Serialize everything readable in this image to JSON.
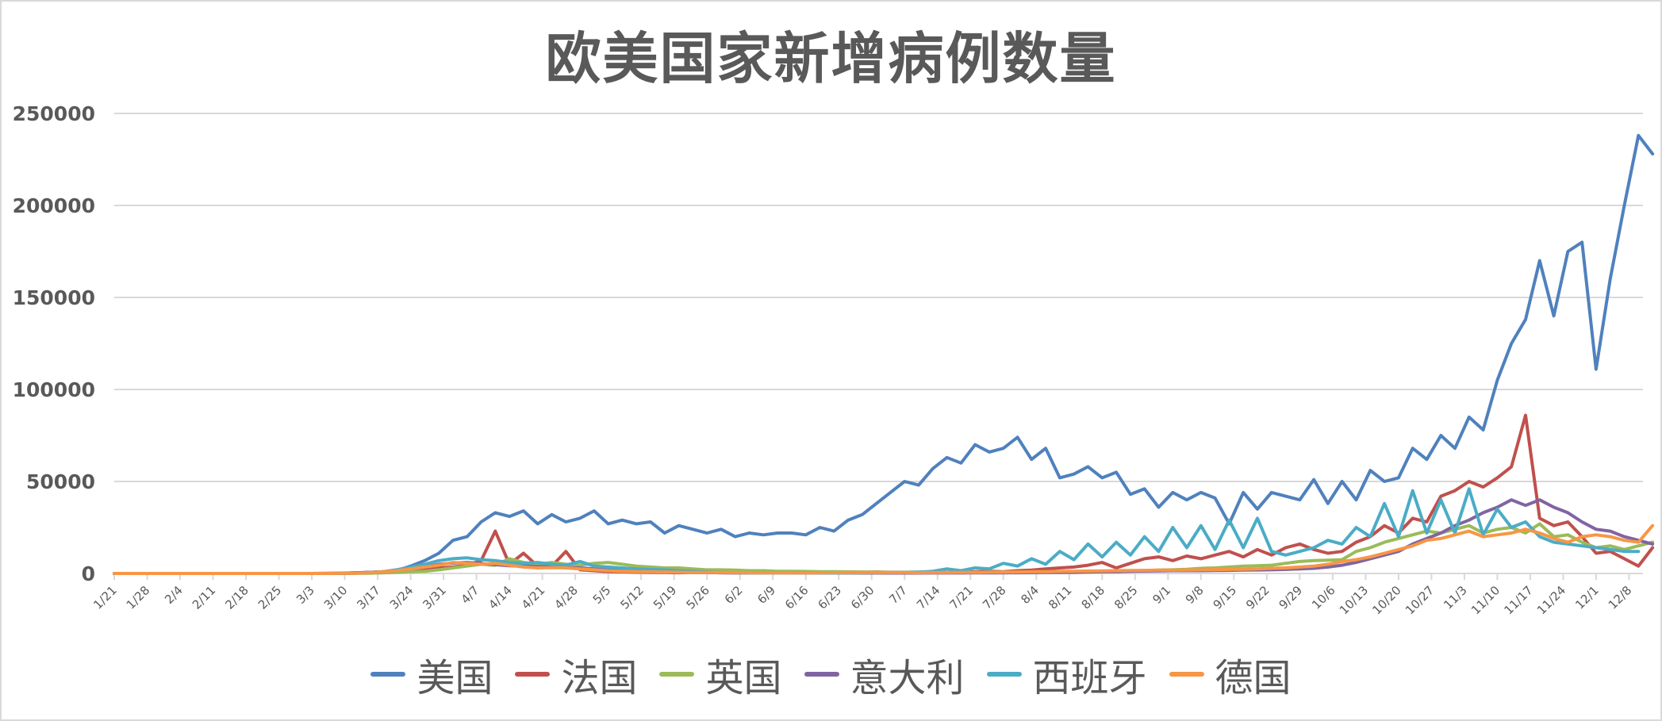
{
  "chart_data": {
    "type": "line",
    "title": "欧美国家新增病例数量",
    "xlabel": "",
    "ylabel": "",
    "ylim": [
      0,
      250000
    ],
    "yticks": [
      0,
      50000,
      100000,
      150000,
      200000,
      250000
    ],
    "grid": true,
    "legend_position": "bottom",
    "x_tick_labels": [
      "1/21",
      "1/28",
      "2/4",
      "2/11",
      "2/18",
      "2/25",
      "3/3",
      "3/10",
      "3/17",
      "3/24",
      "3/31",
      "4/7",
      "4/14",
      "4/21",
      "4/28",
      "5/5",
      "5/12",
      "5/19",
      "5/26",
      "6/2",
      "6/9",
      "6/16",
      "6/23",
      "6/30",
      "7/7",
      "7/14",
      "7/21",
      "7/28",
      "8/4",
      "8/11",
      "8/18",
      "8/25",
      "9/1",
      "9/8",
      "9/15",
      "9/22",
      "9/29",
      "10/6",
      "10/13",
      "10/20",
      "10/27",
      "11/3",
      "11/10",
      "11/17",
      "11/24",
      "12/1",
      "12/8"
    ],
    "x_start": "1/21",
    "x_step_days": 3,
    "series": [
      {
        "name": "美国",
        "color": "#4f81bd",
        "values": [
          1,
          0,
          0,
          0,
          0,
          0,
          0,
          0,
          0,
          0,
          0,
          0,
          0,
          0,
          20,
          50,
          100,
          300,
          500,
          900,
          1500,
          4000,
          7000,
          11000,
          18000,
          20000,
          28000,
          33000,
          31000,
          34000,
          27000,
          32000,
          28000,
          30000,
          34000,
          27000,
          29000,
          27000,
          28000,
          22000,
          26000,
          24000,
          22000,
          24000,
          20000,
          22000,
          21000,
          22000,
          22000,
          21000,
          25000,
          23000,
          29000,
          32000,
          38000,
          44000,
          50000,
          48000,
          57000,
          63000,
          60000,
          70000,
          66000,
          68000,
          74000,
          62000,
          68000,
          52000,
          54000,
          58000,
          52000,
          55000,
          43000,
          46000,
          36000,
          44000,
          40000,
          44000,
          41000,
          27000,
          44000,
          35000,
          44000,
          42000,
          40000,
          51000,
          38000,
          50000,
          40000,
          56000,
          50000,
          52000,
          68000,
          62000,
          75000,
          68000,
          85000,
          78000,
          105000,
          125000,
          138000,
          170000,
          140000,
          175000,
          180000,
          111000,
          160000,
          200000,
          238000,
          228000
        ]
      },
      {
        "name": "法国",
        "color": "#c0504d",
        "values": [
          0,
          1,
          1,
          0,
          0,
          0,
          0,
          0,
          0,
          0,
          0,
          0,
          0,
          0,
          10,
          30,
          100,
          300,
          600,
          900,
          1200,
          1600,
          2000,
          3000,
          3500,
          4500,
          7000,
          23000,
          5000,
          11000,
          4000,
          4000,
          12000,
          2000,
          1500,
          1000,
          900,
          700,
          600,
          500,
          400,
          600,
          500,
          400,
          300,
          400,
          500,
          600,
          500,
          400,
          600,
          500,
          400,
          600,
          800,
          500,
          600,
          700,
          500,
          600,
          700,
          900,
          1200,
          1000,
          1500,
          1800,
          2500,
          3000,
          3500,
          4500,
          6000,
          3000,
          5500,
          8000,
          9000,
          7000,
          9500,
          8000,
          10000,
          12000,
          9000,
          13000,
          10000,
          14000,
          16000,
          13000,
          11000,
          12000,
          17000,
          20000,
          26000,
          22000,
          30000,
          28000,
          42000,
          45000,
          50000,
          47000,
          52000,
          58000,
          86000,
          30000,
          26000,
          28000,
          20000,
          11000,
          12000,
          8000,
          4000,
          14000
        ]
      },
      {
        "name": "英国",
        "color": "#9bbb59",
        "values": [
          0,
          0,
          0,
          0,
          0,
          0,
          0,
          0,
          0,
          0,
          0,
          0,
          0,
          0,
          0,
          10,
          30,
          80,
          150,
          300,
          600,
          900,
          1200,
          2000,
          3000,
          4000,
          5000,
          4500,
          8000,
          6000,
          5000,
          6000,
          5000,
          4500,
          5500,
          6000,
          5000,
          4000,
          3500,
          3000,
          3000,
          2500,
          2000,
          2000,
          1800,
          1500,
          1500,
          1200,
          1200,
          1100,
          1000,
          1000,
          900,
          800,
          800,
          700,
          700,
          800,
          600,
          600,
          700,
          600,
          700,
          800,
          800,
          900,
          900,
          1000,
          900,
          1100,
          1200,
          1000,
          1200,
          1500,
          1800,
          2000,
          2300,
          2800,
          3000,
          3500,
          4000,
          4200,
          4500,
          5500,
          6500,
          7000,
          7200,
          7500,
          12000,
          14000,
          17000,
          19000,
          21000,
          23000,
          22000,
          24000,
          26000,
          22000,
          24000,
          25000,
          22000,
          27000,
          20000,
          21000,
          17000,
          14000,
          15000,
          13000,
          15000,
          17000
        ]
      },
      {
        "name": "意大利",
        "color": "#8064a2",
        "values": [
          0,
          0,
          0,
          0,
          0,
          0,
          0,
          0,
          0,
          0,
          0,
          0,
          0,
          0,
          0,
          20,
          100,
          200,
          500,
          900,
          1500,
          2500,
          3500,
          5000,
          5600,
          6000,
          5400,
          4800,
          4200,
          4000,
          3800,
          3500,
          3200,
          3000,
          2500,
          2000,
          1800,
          1400,
          1200,
          1000,
          800,
          600,
          500,
          400,
          350,
          300,
          300,
          300,
          300,
          250,
          250,
          250,
          250,
          200,
          200,
          200,
          200,
          200,
          250,
          250,
          250,
          300,
          300,
          350,
          400,
          450,
          500,
          550,
          600,
          800,
          900,
          1000,
          1200,
          1300,
          1400,
          1500,
          1500,
          1500,
          1600,
          1700,
          1800,
          1900,
          2000,
          2200,
          2500,
          2800,
          3500,
          4500,
          6000,
          8000,
          10000,
          12000,
          16000,
          19000,
          22000,
          26000,
          29000,
          33000,
          36000,
          40000,
          37000,
          40000,
          36000,
          33000,
          28000,
          24000,
          23000,
          20000,
          18000,
          16000
        ]
      },
      {
        "name": "西班牙",
        "color": "#4bacc6",
        "values": [
          0,
          0,
          0,
          0,
          0,
          0,
          0,
          0,
          0,
          0,
          0,
          0,
          0,
          0,
          0,
          10,
          50,
          150,
          400,
          900,
          2000,
          3500,
          5000,
          7000,
          8000,
          8500,
          7500,
          7000,
          6000,
          5500,
          6000,
          5000,
          4500,
          6500,
          4000,
          3500,
          3000,
          2500,
          2200,
          2000,
          1500,
          1200,
          800,
          600,
          400,
          300,
          300,
          400,
          300,
          300,
          200,
          200,
          300,
          400,
          400,
          500,
          600,
          700,
          1200,
          2500,
          1500,
          3000,
          2500,
          5500,
          4000,
          8000,
          5000,
          12000,
          7500,
          16000,
          9000,
          17000,
          10000,
          20000,
          12000,
          25000,
          14000,
          26000,
          13000,
          29000,
          14000,
          30000,
          12000,
          10000,
          12000,
          14000,
          18000,
          16000,
          25000,
          20000,
          38000,
          20000,
          45000,
          22000,
          40000,
          22000,
          46000,
          21000,
          35000,
          25000,
          28000,
          20000,
          17000,
          16000,
          15000,
          14000,
          13000,
          12000,
          12000
        ]
      },
      {
        "name": "德国",
        "color": "#f79646",
        "values": [
          0,
          0,
          0,
          0,
          0,
          0,
          0,
          0,
          0,
          0,
          0,
          0,
          0,
          0,
          5,
          20,
          60,
          150,
          400,
          900,
          1500,
          2500,
          3500,
          4500,
          6000,
          5500,
          5000,
          5500,
          4500,
          3500,
          3000,
          3200,
          3000,
          2500,
          2000,
          1500,
          1200,
          1000,
          900,
          800,
          700,
          600,
          600,
          500,
          500,
          450,
          400,
          400,
          400,
          350,
          400,
          450,
          500,
          500,
          600,
          500,
          500,
          450,
          500,
          550,
          600,
          600,
          700,
          700,
          800,
          900,
          1000,
          1100,
          1200,
          1300,
          1400,
          1500,
          1600,
          1700,
          1800,
          1800,
          1900,
          2000,
          2100,
          2200,
          2300,
          2500,
          2800,
          3000,
          3500,
          4000,
          5000,
          6500,
          7500,
          9000,
          11000,
          13000,
          15000,
          18000,
          19000,
          21000,
          23000,
          20000,
          21000,
          22000,
          24000,
          22000,
          19000,
          17000,
          20000,
          21000,
          20000,
          18000,
          17000,
          26000
        ]
      }
    ]
  },
  "title": "欧美国家新增病例数量",
  "axis": {
    "y_labels": [
      "250000",
      "200000",
      "150000",
      "100000",
      "50000",
      "0"
    ],
    "x_labels": [
      "1/21",
      "1/28",
      "2/4",
      "2/11",
      "2/18",
      "2/25",
      "3/3",
      "3/10",
      "3/17",
      "3/24",
      "3/31",
      "4/7",
      "4/14",
      "4/21",
      "4/28",
      "5/5",
      "5/12",
      "5/19",
      "5/26",
      "6/2",
      "6/9",
      "6/16",
      "6/23",
      "6/30",
      "7/7",
      "7/14",
      "7/21",
      "7/28",
      "8/4",
      "8/11",
      "8/18",
      "8/25",
      "9/1",
      "9/8",
      "9/15",
      "9/22",
      "9/29",
      "10/6",
      "10/13",
      "10/20",
      "10/27",
      "11/3",
      "11/10",
      "11/17",
      "11/24",
      "12/1",
      "12/8"
    ]
  },
  "legend": [
    {
      "label": "美国",
      "color": "#4f81bd"
    },
    {
      "label": "法国",
      "color": "#c0504d"
    },
    {
      "label": "英国",
      "color": "#9bbb59"
    },
    {
      "label": "意大利",
      "color": "#8064a2"
    },
    {
      "label": "西班牙",
      "color": "#4bacc6"
    },
    {
      "label": "德国",
      "color": "#f79646"
    }
  ]
}
